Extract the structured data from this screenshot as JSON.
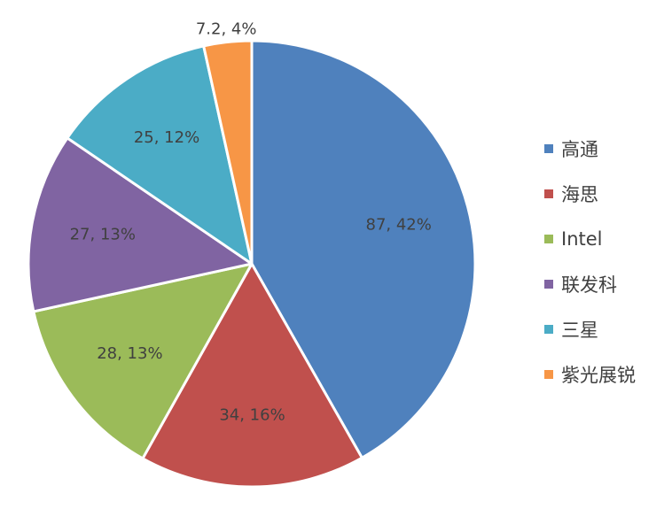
{
  "chart_data": {
    "type": "pie",
    "categories": [
      "高通",
      "海思",
      "Intel",
      "联发科",
      "三星",
      "紫光展锐"
    ],
    "values": [
      87,
      34,
      28,
      27,
      25,
      7.2
    ],
    "data_labels": [
      "87, 42%",
      "34, 16%",
      "28, 13%",
      "27, 13%",
      "25, 12%",
      "7.2, 4%"
    ],
    "colors": [
      "#4f81bd",
      "#c0504d",
      "#9bbb59",
      "#8064a2",
      "#4bacc6",
      "#f79646"
    ],
    "title": "",
    "legend_position": "right",
    "start_angle": "top",
    "direction": "clockwise"
  }
}
